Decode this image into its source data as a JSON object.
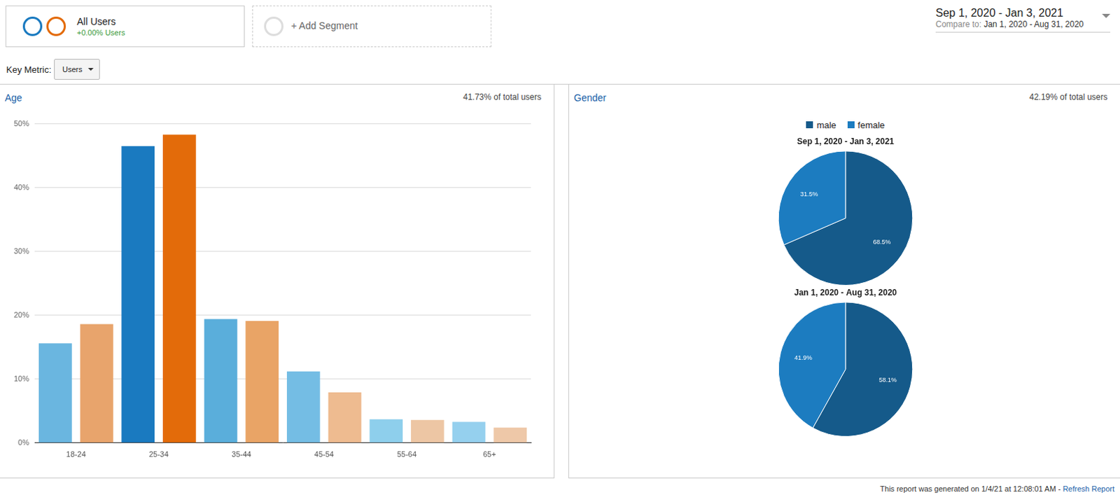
{
  "header": {
    "segment": {
      "name": "All Users",
      "change": "+0.00% Users"
    },
    "add_segment": "+ Add Segment",
    "date_range": "Sep 1, 2020 - Jan 3, 2021",
    "compare_label": "Compare to:",
    "compare_range": "Jan 1, 2020 - Aug 31, 2020",
    "key_metric_label": "Key Metric:",
    "key_metric": "Users"
  },
  "gender_panel": {
    "title": "Gender",
    "note": "42.19% of total users"
  },
  "chart_data": [
    {
      "type": "bar",
      "title": "Age",
      "subtitle": "41.73% of total users",
      "categories": [
        "18-24",
        "25-34",
        "35-44",
        "45-54",
        "55-64",
        "65+"
      ],
      "series": [
        {
          "colors": [
            "#6ab6e0",
            "#1a7ac0",
            "#5aaedb",
            "#74bde4",
            "#8ecfec",
            "#95d0ee"
          ],
          "values": [
            15.6,
            46.5,
            19.4,
            11.2,
            3.7,
            3.3
          ]
        },
        {
          "colors": [
            "#e8a46c",
            "#e36b0a",
            "#e9a466",
            "#eebb90",
            "#edc6a4",
            "#eec8a8"
          ],
          "values": [
            18.6,
            48.3,
            19.1,
            7.9,
            3.6,
            2.4
          ]
        }
      ],
      "ylim": [
        0,
        50
      ],
      "yticks": [
        {
          "value": 0,
          "label": "0%"
        },
        {
          "value": 10,
          "label": "10%"
        },
        {
          "value": 20,
          "label": "20%"
        },
        {
          "value": 30,
          "label": "30%"
        },
        {
          "value": 40,
          "label": "40%"
        },
        {
          "value": 50,
          "label": "50%"
        }
      ],
      "grid": true
    },
    {
      "type": "pie",
      "title": "Sep 1, 2020 - Jan 3, 2021",
      "categories": [
        "male",
        "female"
      ],
      "values": [
        68.5,
        31.5
      ],
      "value_labels": [
        "68.5%",
        "31.5%"
      ],
      "colors": [
        "#155a8a",
        "#1c7cc0"
      ],
      "data_labels": true,
      "legend": "top"
    },
    {
      "type": "pie",
      "title": "Jan 1, 2020 - Aug 31, 2020",
      "categories": [
        "male",
        "female"
      ],
      "values": [
        58.1,
        41.9
      ],
      "value_labels": [
        "58.1%",
        "41.9%"
      ],
      "colors": [
        "#155a8a",
        "#1c7cc0"
      ],
      "data_labels": true
    }
  ],
  "footer": {
    "text": "This report was generated on 1/4/21 at 12:08:01 AM -",
    "link": "Refresh Report"
  }
}
